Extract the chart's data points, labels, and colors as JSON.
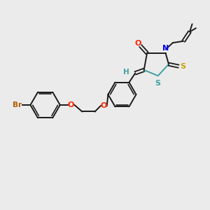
{
  "background_color": "#ebebeb",
  "bond_color": "#1a1a1a",
  "colors": {
    "Br": "#b35a00",
    "O": "#ff2200",
    "N": "#0000ff",
    "S_exo": "#c8a000",
    "S_ring": "#40a0a0",
    "H": "#40a0a0",
    "O_carbonyl": "#ff2200"
  },
  "figsize": [
    3.0,
    3.0
  ],
  "dpi": 100
}
